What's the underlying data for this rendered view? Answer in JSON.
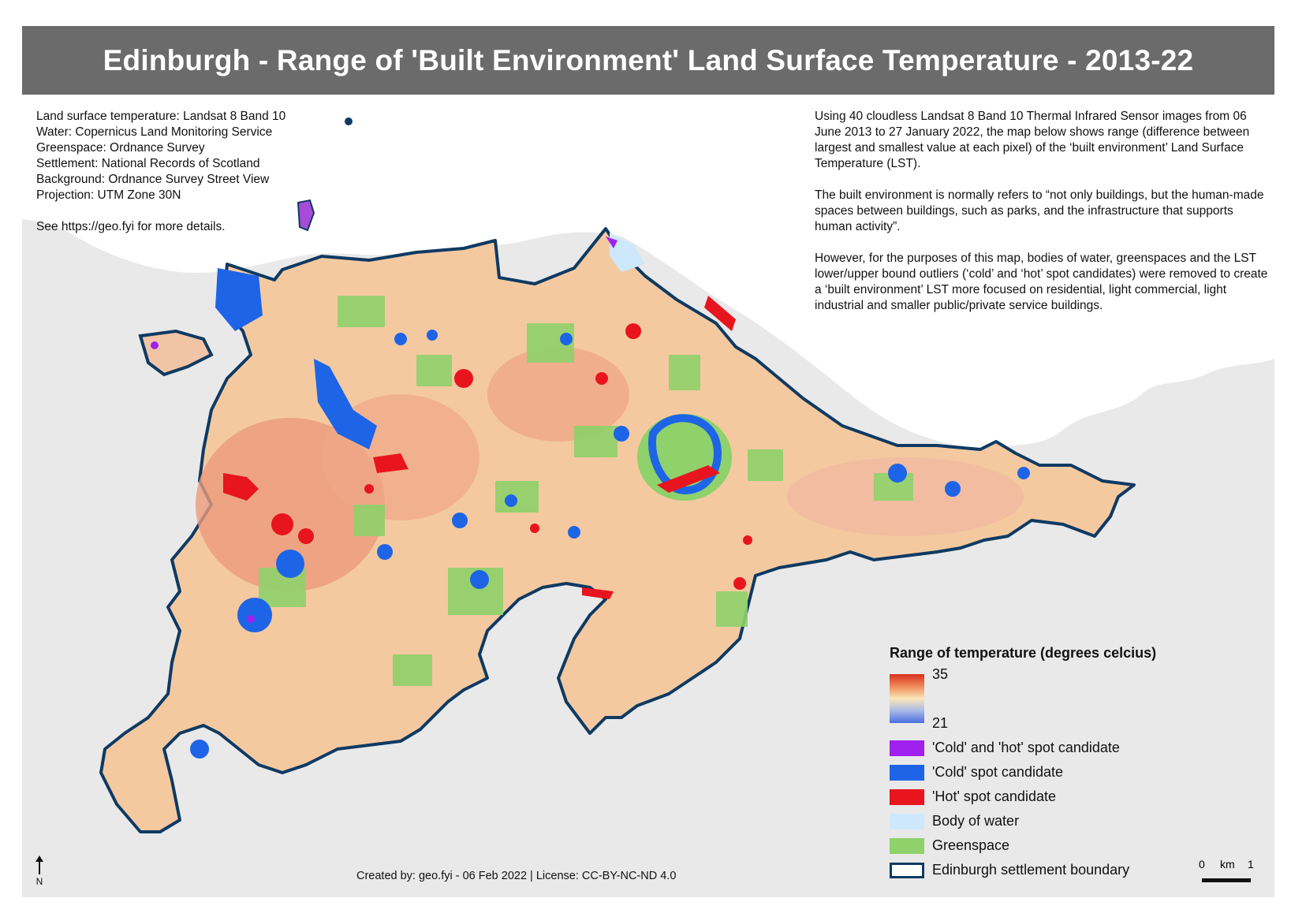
{
  "title": "Edinburgh - Range of 'Built Environment' Land Surface Temperature - 2013-22",
  "sources": [
    "Land surface temperature: Landsat 8 Band 10",
    "Water: Copernicus Land Monitoring Service",
    "Greenspace: Ordnance Survey",
    "Settlement: National Records of Scotland",
    "Background: Ordnance Survey Street View",
    "Projection: UTM Zone 30N"
  ],
  "more_details": "See https://geo.fyi for more details.",
  "description": [
    "Using 40 cloudless Landsat 8 Band 10 Thermal Infrared Sensor images from 06 June 2013 to 27 January 2022, the map below shows range (difference between largest and smallest value at each pixel) of the ‘built environment’ Land Surface Temperature (LST).",
    "The built environment is normally refers to “not only buildings, but the human-made spaces between buildings, such as parks, and the infrastructure that supports human activity”.",
    "However, for the purposes of this map, bodies of water, greenspaces and the LST lower/upper bound outliers (‘cold’ and ‘hot’ spot candidates) were removed to create a ‘built environment’ LST more focused on residential, light commercial, light industrial and smaller public/private service buildings."
  ],
  "legend": {
    "title": "Range of temperature (degrees celcius)",
    "gradient_max": "35",
    "gradient_min": "21",
    "gradient_colors": [
      "#d7301f",
      "#fbe7b8",
      "#4a6fe0"
    ],
    "items": [
      {
        "label": "'Cold' and 'hot' spot candidate",
        "color": "#a020f0"
      },
      {
        "label": "'Cold' spot candidate",
        "color": "#1e64e6"
      },
      {
        "label": "'Hot' spot candidate",
        "color": "#e8141e"
      },
      {
        "label": "Body of water",
        "color": "#cde8fb"
      },
      {
        "label": "Greenspace",
        "color": "#8fd16a"
      },
      {
        "label": "Edinburgh settlement boundary",
        "color": "#0e3a63"
      }
    ]
  },
  "credit": "Created by: geo.fyi - 06 Feb 2022 | License: CC-BY-NC-ND 4.0",
  "scale": {
    "start": "0",
    "unit": "km",
    "end": "1"
  },
  "north": "N"
}
